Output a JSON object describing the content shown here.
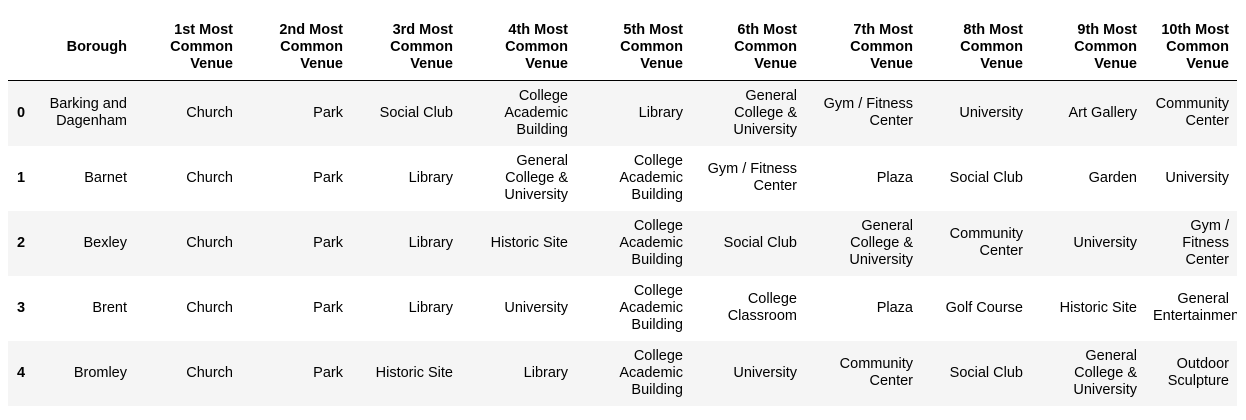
{
  "table": {
    "index_header": "",
    "columns": [
      "Borough",
      "1st Most Common Venue",
      "2nd Most Common Venue",
      "3rd Most Common Venue",
      "4th Most Common Venue",
      "5th Most Common Venue",
      "6th Most Common Venue",
      "7th Most Common Venue",
      "8th Most Common Venue",
      "9th Most Common Venue",
      "10th Most Common Venue"
    ],
    "rows": [
      {
        "index": "0",
        "cells": [
          "Barking and Dagenham",
          "Church",
          "Park",
          "Social Club",
          "College Academic Building",
          "Library",
          "General College & University",
          "Gym / Fitness Center",
          "University",
          "Art Gallery",
          "Community Center"
        ]
      },
      {
        "index": "1",
        "cells": [
          "Barnet",
          "Church",
          "Park",
          "Library",
          "General College & University",
          "College Academic Building",
          "Gym / Fitness Center",
          "Plaza",
          "Social Club",
          "Garden",
          "University"
        ]
      },
      {
        "index": "2",
        "cells": [
          "Bexley",
          "Church",
          "Park",
          "Library",
          "Historic Site",
          "College Academic Building",
          "Social Club",
          "General College & University",
          "Community Center",
          "University",
          "Gym / Fitness Center"
        ]
      },
      {
        "index": "3",
        "cells": [
          "Brent",
          "Church",
          "Park",
          "Library",
          "University",
          "College Academic Building",
          "College Classroom",
          "Plaza",
          "Golf Course",
          "Historic Site",
          "General Entertainment"
        ]
      },
      {
        "index": "4",
        "cells": [
          "Bromley",
          "Church",
          "Park",
          "Historic Site",
          "Library",
          "College Academic Building",
          "University",
          "Community Center",
          "Social Club",
          "General College & University",
          "Outdoor Sculpture"
        ]
      }
    ]
  }
}
